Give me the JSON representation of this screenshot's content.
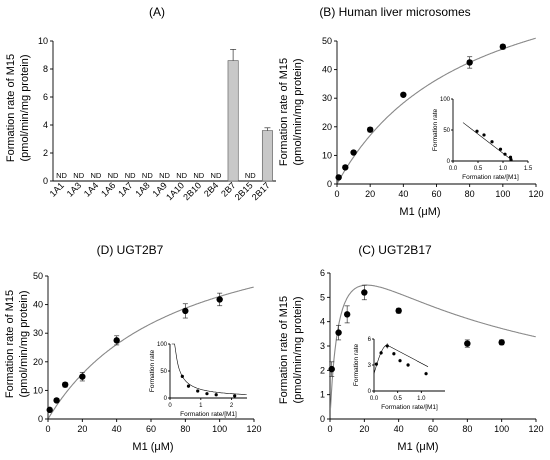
{
  "chart_data": [
    {
      "id": "A",
      "type": "bar",
      "title": "(A)",
      "ylabel": "Formation rate of M15",
      "ylabel2": "(pmol/min/mg protein)",
      "xlabel": "",
      "ylim": [
        0,
        10
      ],
      "yticks": [
        0,
        2,
        4,
        6,
        8,
        10
      ],
      "categories": [
        "1A1",
        "1A3",
        "1A4",
        "1A6",
        "1A7",
        "1A8",
        "1A9",
        "1A10",
        "2B10",
        "2B4",
        "2B7",
        "2B15",
        "2B17"
      ],
      "values": [
        null,
        null,
        null,
        null,
        null,
        null,
        null,
        null,
        null,
        null,
        8.6,
        null,
        3.6
      ],
      "errors": [
        null,
        null,
        null,
        null,
        null,
        null,
        null,
        null,
        null,
        null,
        0.8,
        null,
        0.2
      ],
      "value_labels": [
        "ND",
        "ND",
        "ND",
        "ND",
        "ND",
        "ND",
        "ND",
        "ND",
        "ND",
        "ND",
        "",
        "ND",
        ""
      ]
    },
    {
      "id": "B",
      "type": "scatter",
      "title": "(B) Human liver microsomes",
      "ylabel": "Formation rate of M15",
      "ylabel2": "(pmol/min/mg protein)",
      "xlabel": "M1 (μM)",
      "xlim": [
        0,
        120
      ],
      "ylim": [
        0,
        50
      ],
      "xticks": [
        0,
        20,
        40,
        60,
        80,
        100,
        120
      ],
      "yticks": [
        0,
        10,
        20,
        30,
        40,
        50
      ],
      "x": [
        1,
        5,
        10,
        20,
        40,
        80,
        100
      ],
      "y": [
        2.3,
        5.8,
        11,
        19,
        31.2,
        42.5,
        48
      ],
      "errors": [
        0.3,
        0.4,
        0.5,
        0.8,
        0.6,
        2.0,
        0.8
      ],
      "fit": {
        "model": "michaelis-menten",
        "vmax": 85,
        "km": 80
      },
      "inset": {
        "type": "scatter",
        "xlabel": "Formation rate/[M1]",
        "ylabel": "Formation rate",
        "xlim": [
          0,
          1.5
        ],
        "ylim": [
          0,
          100
        ],
        "xticks": [
          0.0,
          0.5,
          1.0,
          1.5
        ],
        "yticks": [
          0,
          50,
          100
        ],
        "x": [
          0.48,
          0.62,
          0.78,
          0.95,
          1.04,
          1.15,
          1.16
        ],
        "y": [
          48,
          42,
          31,
          19,
          11,
          6,
          2.3
        ],
        "fit_line": [
          [
            0.2,
            62
          ],
          [
            1.2,
            0
          ]
        ]
      }
    },
    {
      "id": "D",
      "type": "scatter",
      "title": "(D) UGT2B7",
      "ylabel": "Formation rate of M15",
      "ylabel2": "(pmol/min/mg protein)",
      "xlabel": "M1 (μM)",
      "xlim": [
        0,
        120
      ],
      "ylim": [
        0,
        50
      ],
      "xticks": [
        0,
        20,
        40,
        60,
        80,
        100,
        120
      ],
      "yticks": [
        0,
        10,
        20,
        30,
        40,
        50
      ],
      "x": [
        1,
        5,
        10,
        20,
        40,
        80,
        100
      ],
      "y": [
        3.2,
        6.5,
        12,
        14.8,
        27.5,
        37.8,
        41.8
      ],
      "errors": [
        0.4,
        0.5,
        0.8,
        1.5,
        1.6,
        2.5,
        2.2
      ],
      "fit": {
        "model": "michaelis-menten",
        "vmax": 75,
        "km": 75
      },
      "inset": {
        "type": "scatter",
        "xlabel": "Formation rate/[M1]",
        "ylabel": "Formation rate",
        "xlim": [
          0,
          2.5
        ],
        "ylim": [
          0,
          100
        ],
        "xticks": [
          0,
          1,
          2
        ],
        "yticks": [
          0,
          50,
          100
        ],
        "x": [
          0.4,
          0.6,
          0.9,
          1.2,
          1.5,
          2.1
        ],
        "y": [
          40,
          22,
          13,
          8,
          6,
          4
        ],
        "errors": [
          3,
          3,
          2,
          2,
          1,
          1
        ],
        "fit_curve": "decay"
      }
    },
    {
      "id": "C",
      "type": "scatter",
      "title": "(C) UGT2B17",
      "ylabel": "Formation rate of M15",
      "ylabel2": "(pmol/min/mg protein)",
      "xlabel": "M1 (μM)",
      "xlim": [
        0,
        120
      ],
      "ylim": [
        0,
        6
      ],
      "xticks": [
        0,
        20,
        40,
        60,
        80,
        100,
        120
      ],
      "yticks": [
        0,
        1,
        2,
        3,
        4,
        5,
        6
      ],
      "x": [
        1,
        5,
        10,
        20,
        40,
        80,
        100
      ],
      "y": [
        2.05,
        3.55,
        4.3,
        5.2,
        4.45,
        3.1,
        3.15
      ],
      "errors": [
        0.3,
        0.3,
        0.35,
        0.3,
        0.1,
        0.15,
        0.1
      ],
      "fit": {
        "model": "substrate-inhibition",
        "vmax": 8.3,
        "km": 5.5,
        "ksi": 85
      },
      "inset": {
        "type": "scatter",
        "xlabel": "Formation rate/[M1]",
        "ylabel": "Formation rate",
        "xlim": [
          0,
          1.5
        ],
        "ylim": [
          0,
          6
        ],
        "xticks": [
          0.0,
          0.5,
          1.0
        ],
        "yticks": [
          0,
          3,
          6
        ],
        "x": [
          0.05,
          0.15,
          0.28,
          0.42,
          0.55,
          0.72,
          1.1
        ],
        "y": [
          3.1,
          4.4,
          5.2,
          4.3,
          3.5,
          3.0,
          2.0
        ],
        "errors": [
          0.2,
          0.2,
          0.3,
          0.2,
          0.2,
          0.2,
          0.2
        ],
        "fit_curve": "hump"
      }
    }
  ]
}
